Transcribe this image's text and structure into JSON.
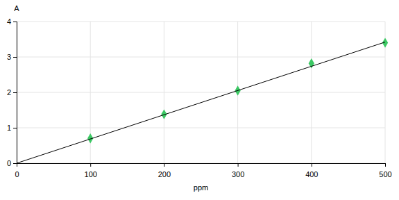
{
  "chart_data": {
    "type": "scatter",
    "x_label": "ppm",
    "y_label": "A",
    "x": [
      100,
      200,
      300,
      400,
      500
    ],
    "series": [
      {
        "type": "scatter",
        "color": "#3cc864",
        "marker": "diamond",
        "values": [
          0.7,
          1.38,
          2.05,
          2.82,
          3.4
        ]
      },
      {
        "type": "line",
        "color": "#000000",
        "line_style": "solid",
        "x": [
          0,
          500
        ],
        "values": [
          0,
          3.42
        ]
      }
    ],
    "xlim": [
      0,
      500
    ],
    "xticks": [
      0,
      100,
      200,
      300,
      400,
      500
    ],
    "ylim": [
      0,
      4
    ],
    "yticks": [
      0,
      1,
      2,
      3,
      4
    ],
    "grid": true
  }
}
